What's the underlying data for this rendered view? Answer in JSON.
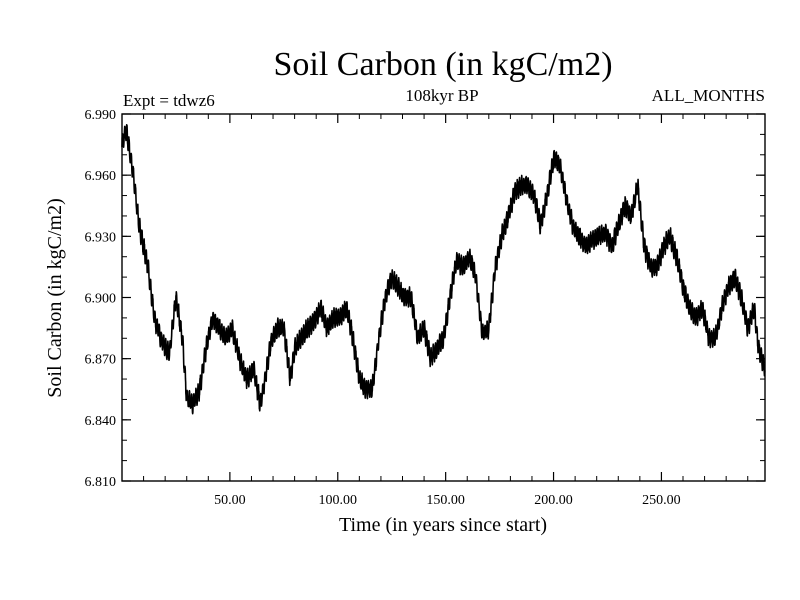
{
  "chart_data": {
    "type": "line",
    "title": "Soil Carbon (in kgC/m2)",
    "subtitle_left": "Expt = tdwz6",
    "subtitle_center": "108kyr BP",
    "subtitle_right": "ALL_MONTHS",
    "xlabel": "Time (in years since start)",
    "ylabel": "Soil Carbon (in kgC/m2)",
    "xlim": [
      0,
      298
    ],
    "ylim": [
      6.81,
      6.99
    ],
    "x_ticks": [
      50,
      100,
      150,
      200,
      250
    ],
    "x_tick_labels": [
      "50.00",
      "100.00",
      "150.00",
      "200.00",
      "250.00"
    ],
    "y_ticks": [
      6.81,
      6.84,
      6.87,
      6.9,
      6.93,
      6.96,
      6.99
    ],
    "y_tick_labels": [
      "6.810",
      "6.840",
      "6.870",
      "6.900",
      "6.930",
      "6.960",
      "6.990"
    ],
    "grid": false,
    "line_color": "#000000",
    "seasonal_amplitude": 0.004,
    "series": [
      {
        "x": [
          0,
          2,
          5,
          8,
          12,
          15,
          18,
          22,
          25,
          28,
          30,
          33,
          36,
          39,
          42,
          45,
          48,
          51,
          55,
          58,
          61,
          64,
          66,
          69,
          72,
          75,
          78,
          80,
          83,
          86,
          89,
          92,
          95,
          98,
          101,
          104,
          107,
          110,
          113,
          116,
          119,
          122,
          125,
          128,
          131,
          134,
          137,
          140,
          143,
          146,
          149,
          152,
          155,
          158,
          161,
          164,
          167,
          170,
          173,
          176,
          179,
          182,
          185,
          188,
          191,
          194,
          197,
          200,
          203,
          206,
          209,
          212,
          215,
          218,
          221,
          224,
          227,
          230,
          233,
          236,
          239,
          242,
          245,
          248,
          251,
          254,
          257,
          260,
          263,
          266,
          269,
          272,
          275,
          278,
          281,
          284,
          287,
          290,
          293,
          295,
          298
        ],
        "values": [
          6.975,
          6.982,
          6.962,
          6.935,
          6.915,
          6.89,
          6.88,
          6.872,
          6.9,
          6.88,
          6.85,
          6.848,
          6.855,
          6.875,
          6.89,
          6.885,
          6.88,
          6.885,
          6.868,
          6.86,
          6.865,
          6.848,
          6.858,
          6.878,
          6.885,
          6.885,
          6.86,
          6.875,
          6.88,
          6.885,
          6.888,
          6.895,
          6.885,
          6.89,
          6.89,
          6.895,
          6.88,
          6.86,
          6.855,
          6.855,
          6.88,
          6.9,
          6.91,
          6.905,
          6.9,
          6.9,
          6.88,
          6.885,
          6.87,
          6.875,
          6.88,
          6.9,
          6.918,
          6.915,
          6.92,
          6.91,
          6.882,
          6.885,
          6.915,
          6.93,
          6.94,
          6.952,
          6.955,
          6.955,
          6.95,
          6.935,
          6.95,
          6.968,
          6.965,
          6.948,
          6.935,
          6.93,
          6.925,
          6.928,
          6.93,
          6.932,
          6.925,
          6.935,
          6.945,
          6.94,
          6.955,
          6.925,
          6.915,
          6.915,
          6.925,
          6.93,
          6.92,
          6.905,
          6.895,
          6.89,
          6.895,
          6.88,
          6.88,
          6.895,
          6.905,
          6.91,
          6.9,
          6.885,
          6.895,
          6.875,
          6.865
        ]
      }
    ]
  }
}
